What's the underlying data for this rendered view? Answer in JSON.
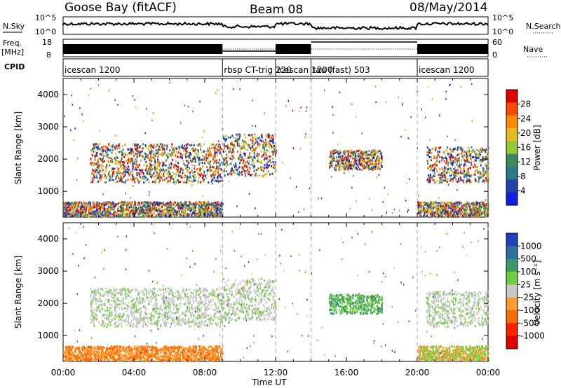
{
  "header": {
    "station": "Goose Bay (fitACF)",
    "beam": "Beam 08",
    "date": "08/May/2014"
  },
  "strip_labels": {
    "nsky": "N.Sky",
    "nsearch": "N.Search",
    "freq": "Freq.",
    "freq_unit": "[MHz]",
    "nave": "Nave",
    "cpid": "CPID"
  },
  "noise_ticks": {
    "top_left": "10^5",
    "bottom_left": "10^0",
    "top_right": "10^5",
    "bottom_right": "10^0"
  },
  "freq_ticks": {
    "left_top": "18",
    "left_bottom": "8",
    "right_top": "60",
    "right_bottom": "0"
  },
  "cpid_segments": [
    {
      "label": "icescan 1200",
      "start_h": 0.0,
      "end_h": 9.0
    },
    {
      "label": "rbsp CT-trig 220",
      "start_h": 9.0,
      "end_h": 12.0
    },
    {
      "label": "icescan 1200",
      "start_h": 12.0,
      "end_h": 14.0
    },
    {
      "label": "tau (fast) 503",
      "start_h": 14.0,
      "end_h": 20.0
    },
    {
      "label": "icescan 1200",
      "start_h": 20.0,
      "end_h": 24.0
    }
  ],
  "power_colorbar": {
    "label": "Power [dB]",
    "ticks": [
      "28",
      "24",
      "20",
      "16",
      "12",
      "8",
      "4"
    ],
    "colors": [
      "#e00000",
      "#ff4a00",
      "#ff8c00",
      "#e0c020",
      "#98c838",
      "#3c8a5c",
      "#2d7a8a",
      "#2244aa",
      "#1020e0"
    ]
  },
  "velocity_colorbar": {
    "label": "Velocity [m s⁻¹]",
    "ticks": [
      "1000",
      "500",
      "100",
      "25",
      "-25",
      "-100",
      "-500",
      "-1000"
    ],
    "colors": [
      "#2040c0",
      "#3070a0",
      "#3a9a6a",
      "#70cc40",
      "#c8c8c8",
      "#ff9a30",
      "#ff6a00",
      "#ff2000",
      "#e00000"
    ]
  },
  "chart_data": {
    "type": "heatmap",
    "xlabel": "Time UT",
    "ylabel": "Slant Range [km]",
    "x_ticks": [
      "00:00",
      "04:00",
      "08:00",
      "12:00",
      "16:00",
      "20:00",
      "00:00"
    ],
    "y_ticks": [
      "1000",
      "2000",
      "3000",
      "4000"
    ],
    "xlim_hours": [
      0,
      24
    ],
    "ylim_km": [
      200,
      4500
    ],
    "mode_boundaries_h": [
      9.0,
      12.0,
      14.0,
      20.0
    ],
    "panels": [
      "Power [dB]",
      "Velocity [m s⁻¹]"
    ],
    "backscatter_bands": [
      {
        "start_h": 0.0,
        "end_h": 9.0,
        "range_km": [
          250,
          700
        ],
        "power": "12-28 dB",
        "velocity": "-100 to -500"
      },
      {
        "start_h": 1.5,
        "end_h": 9.0,
        "range_km": [
          1300,
          2500
        ],
        "power": "4-16 dB",
        "velocity": "-25 to 25"
      },
      {
        "start_h": 9.0,
        "end_h": 12.0,
        "range_km": [
          1500,
          2800
        ],
        "power": "4-12 dB",
        "velocity": "-25 to 25"
      },
      {
        "start_h": 15.0,
        "end_h": 18.0,
        "range_km": [
          1700,
          2300
        ],
        "power": "8-16 dB",
        "velocity": "100 to 500"
      },
      {
        "start_h": 20.0,
        "end_h": 24.0,
        "range_km": [
          250,
          700
        ],
        "power": "8-24 dB",
        "velocity": "-100 to -25"
      },
      {
        "start_h": 20.5,
        "end_h": 24.0,
        "range_km": [
          1300,
          2400
        ],
        "power": "4-12 dB",
        "velocity": "-25 to 25"
      }
    ]
  }
}
